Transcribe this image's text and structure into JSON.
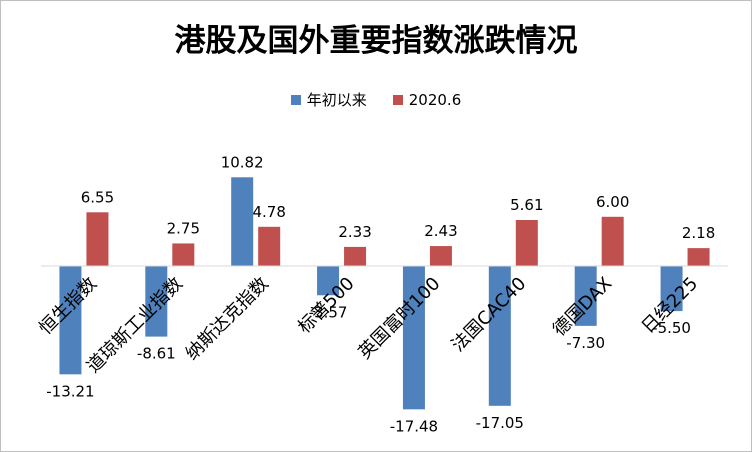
{
  "chart_data": {
    "type": "bar",
    "title": "港股及国外重要指数涨跌情况",
    "categories": [
      "恒生指数",
      "道琼斯工业指数",
      "纳斯达克指数",
      "标普500",
      "英国富时100",
      "法国CAC40",
      "德国DAX",
      "日经225"
    ],
    "series": [
      {
        "name": "年初以来",
        "color": "#4f81bd",
        "values": [
          -13.21,
          -8.61,
          10.82,
          -3.57,
          -17.48,
          -17.05,
          -7.3,
          -5.5
        ]
      },
      {
        "name": "2020.6",
        "color": "#c0504d",
        "values": [
          6.55,
          2.75,
          4.78,
          2.33,
          2.43,
          5.61,
          6.0,
          2.18
        ]
      }
    ],
    "value_labels": [
      [
        "-13.21",
        "-8.61",
        "10.82",
        "-3.57",
        "-17.48",
        "-17.05",
        "-7.30",
        "-5.50"
      ],
      [
        "6.55",
        "2.75",
        "4.78",
        "2.33",
        "2.43",
        "5.61",
        "6.00",
        "2.18"
      ]
    ],
    "xlabel": "",
    "ylabel": "",
    "ylim": [
      -18,
      11
    ],
    "grid": false,
    "legend_position": "top-center"
  }
}
